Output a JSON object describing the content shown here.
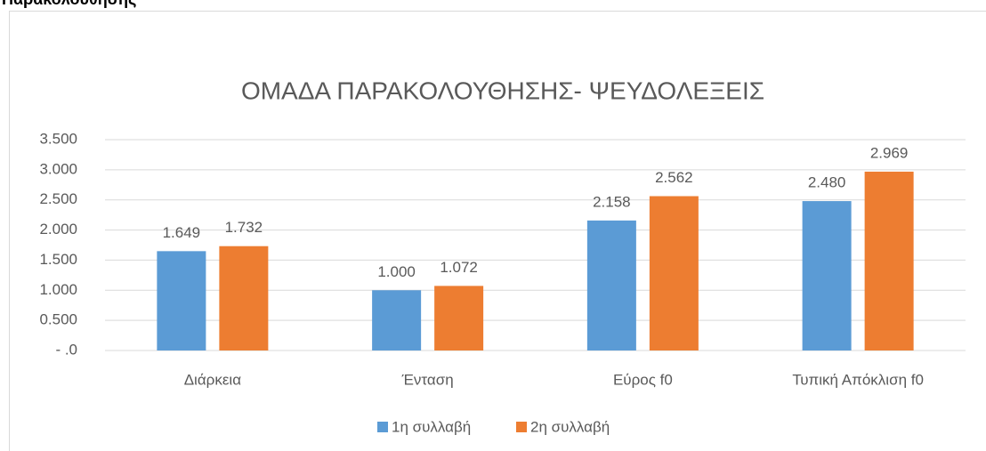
{
  "heading": "Παρακολούθησης",
  "chart_data": {
    "type": "bar",
    "title": "ΟΜΑΔΑ ΠΑΡΑΚΟΛΟΥΘΗΣΗΣ- ΨΕΥΔΟΛΕΞΕΙΣ",
    "categories": [
      "Διάρκεια",
      "Ένταση",
      "Εύρος f0",
      "Τυπική Απόκλιση f0"
    ],
    "series": [
      {
        "name": "1η συλλαβή",
        "color": "#5b9bd5",
        "values": [
          1.649,
          1.0,
          2.158,
          2.48
        ],
        "value_labels": [
          "1.649",
          "1.000",
          "2.158",
          "2.480"
        ]
      },
      {
        "name": "2η συλλαβή",
        "color": "#ed7d31",
        "values": [
          1.732,
          1.072,
          2.562,
          2.969
        ],
        "value_labels": [
          "1.732",
          "1.072",
          "2.562",
          "2.969"
        ]
      }
    ],
    "ylim": [
      0,
      3.5
    ],
    "yticks": [
      {
        "value": 0,
        "label": "- .0"
      },
      {
        "value": 0.5,
        "label": "0.500"
      },
      {
        "value": 1,
        "label": "1.000"
      },
      {
        "value": 1.5,
        "label": "1.500"
      },
      {
        "value": 2,
        "label": "2.000"
      },
      {
        "value": 2.5,
        "label": "2.500"
      },
      {
        "value": 3,
        "label": "3.000"
      },
      {
        "value": 3.5,
        "label": "3.500"
      }
    ],
    "grid": true,
    "legend": "bottom"
  }
}
